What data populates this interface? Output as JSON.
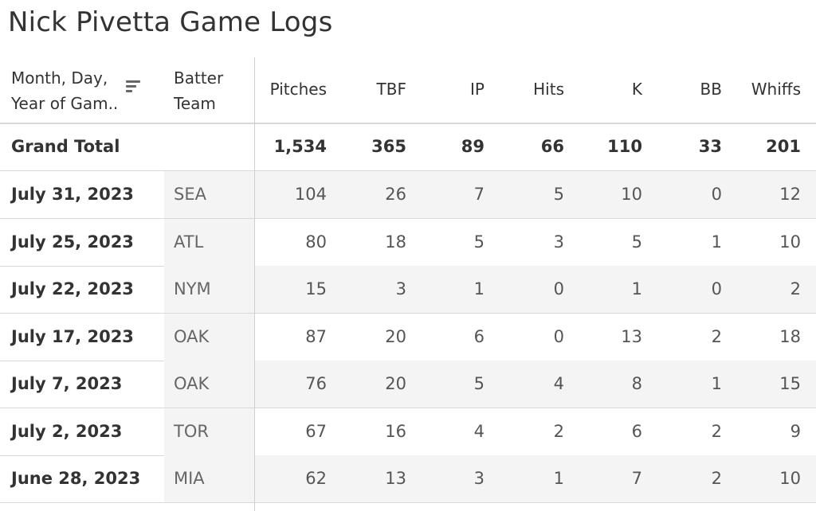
{
  "title": "Nick Pivetta Game Logs",
  "headers": {
    "date": [
      "Month, Day,",
      "Year of Gam.."
    ],
    "team": [
      "Batter",
      "Team"
    ],
    "pitches": "Pitches",
    "tbf": "TBF",
    "ip": "IP",
    "hits": "Hits",
    "k": "K",
    "bb": "BB",
    "whiffs": "Whiffs"
  },
  "total": {
    "label": "Grand Total",
    "pitches": "1,534",
    "tbf": "365",
    "ip": "89",
    "hits": "66",
    "k": "110",
    "bb": "33",
    "whiffs": "201"
  },
  "rows": [
    {
      "date": "July 31, 2023",
      "team": "SEA",
      "pitches": "104",
      "tbf": "26",
      "ip": "7",
      "hits": "5",
      "k": "10",
      "bb": "0",
      "whiffs": "12"
    },
    {
      "date": "July 25, 2023",
      "team": "ATL",
      "pitches": "80",
      "tbf": "18",
      "ip": "5",
      "hits": "3",
      "k": "5",
      "bb": "1",
      "whiffs": "10"
    },
    {
      "date": "July 22, 2023",
      "team": "NYM",
      "pitches": "15",
      "tbf": "3",
      "ip": "1",
      "hits": "0",
      "k": "1",
      "bb": "0",
      "whiffs": "2"
    },
    {
      "date": "July 17, 2023",
      "team": "OAK",
      "pitches": "87",
      "tbf": "20",
      "ip": "6",
      "hits": "0",
      "k": "13",
      "bb": "2",
      "whiffs": "18"
    },
    {
      "date": "July 7, 2023",
      "team": "OAK",
      "pitches": "76",
      "tbf": "20",
      "ip": "5",
      "hits": "4",
      "k": "8",
      "bb": "1",
      "whiffs": "15"
    },
    {
      "date": "July 2, 2023",
      "team": "TOR",
      "pitches": "67",
      "tbf": "16",
      "ip": "4",
      "hits": "2",
      "k": "6",
      "bb": "2",
      "whiffs": "9"
    },
    {
      "date": "June 28, 2023",
      "team": "MIA",
      "pitches": "62",
      "tbf": "13",
      "ip": "3",
      "hits": "1",
      "k": "7",
      "bb": "2",
      "whiffs": "10"
    }
  ]
}
